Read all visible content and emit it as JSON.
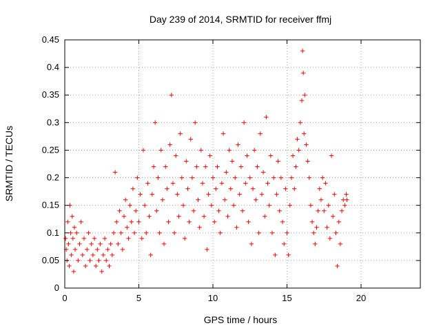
{
  "chart_data": {
    "type": "scatter",
    "title": "Day 239 of 2014, SRMTID for receiver ffmj",
    "xlabel": "GPS time / hours",
    "ylabel": "SRMTID / TECUs",
    "xlim": [
      0,
      24
    ],
    "ylim": [
      0,
      0.45
    ],
    "x_ticks": [
      0,
      5,
      10,
      15,
      20
    ],
    "y_ticks": [
      0,
      0.05,
      0.1,
      0.15,
      0.2,
      0.25,
      0.3,
      0.35,
      0.4,
      0.45
    ],
    "x_tick_labels": [
      "0",
      "5",
      "10",
      "15",
      "20"
    ],
    "y_tick_labels": [
      "0",
      "0.05",
      "0.1",
      "0.15",
      "0.2",
      "0.25",
      "0.3",
      "0.35",
      "0.4",
      "0.45"
    ],
    "grid": true,
    "marker": "+",
    "color": "#ff0000",
    "series": [
      {
        "points": [
          [
            0.05,
            0.09
          ],
          [
            0.1,
            0.07
          ],
          [
            0.15,
            0.05
          ],
          [
            0.2,
            0.12
          ],
          [
            0.25,
            0.08
          ],
          [
            0.3,
            0.04
          ],
          [
            0.35,
            0.15
          ],
          [
            0.4,
            0.1
          ],
          [
            0.45,
            0.06
          ],
          [
            0.5,
            0.13
          ],
          [
            0.55,
            0.09
          ],
          [
            0.6,
            0.03
          ],
          [
            0.65,
            0.11
          ],
          [
            0.7,
            0.07
          ],
          [
            0.8,
            0.1
          ],
          [
            0.9,
            0.05
          ],
          [
            1.0,
            0.08
          ],
          [
            1.1,
            0.12
          ],
          [
            1.2,
            0.06
          ],
          [
            1.3,
            0.09
          ],
          [
            1.4,
            0.04
          ],
          [
            1.5,
            0.07
          ],
          [
            1.6,
            0.1
          ],
          [
            1.7,
            0.05
          ],
          [
            1.8,
            0.08
          ],
          [
            1.9,
            0.06
          ],
          [
            2.0,
            0.09
          ],
          [
            2.1,
            0.04
          ],
          [
            2.2,
            0.07
          ],
          [
            2.3,
            0.05
          ],
          [
            2.4,
            0.08
          ],
          [
            2.5,
            0.03
          ],
          [
            2.6,
            0.06
          ],
          [
            2.7,
            0.09
          ],
          [
            2.8,
            0.05
          ],
          [
            2.9,
            0.07
          ],
          [
            3.0,
            0.04
          ],
          [
            3.1,
            0.08
          ],
          [
            3.2,
            0.06
          ],
          [
            3.3,
            0.1
          ],
          [
            3.4,
            0.21
          ],
          [
            3.5,
            0.12
          ],
          [
            3.6,
            0.08
          ],
          [
            3.7,
            0.14
          ],
          [
            3.8,
            0.1
          ],
          [
            3.9,
            0.07
          ],
          [
            4.0,
            0.13
          ],
          [
            4.1,
            0.16
          ],
          [
            4.2,
            0.11
          ],
          [
            4.3,
            0.09
          ],
          [
            4.4,
            0.15
          ],
          [
            4.5,
            0.12
          ],
          [
            4.6,
            0.18
          ],
          [
            4.7,
            0.1
          ],
          [
            4.8,
            0.14
          ],
          [
            4.9,
            0.2
          ],
          [
            5.0,
            0.12
          ],
          [
            5.1,
            0.17
          ],
          [
            5.2,
            0.09
          ],
          [
            5.3,
            0.25
          ],
          [
            5.4,
            0.15
          ],
          [
            5.5,
            0.1
          ],
          [
            5.6,
            0.19
          ],
          [
            5.7,
            0.13
          ],
          [
            5.8,
            0.06
          ],
          [
            5.9,
            0.17
          ],
          [
            6.0,
            0.22
          ],
          [
            6.1,
            0.3
          ],
          [
            6.2,
            0.14
          ],
          [
            6.3,
            0.2
          ],
          [
            6.4,
            0.1
          ],
          [
            6.5,
            0.25
          ],
          [
            6.6,
            0.16
          ],
          [
            6.7,
            0.08
          ],
          [
            6.8,
            0.22
          ],
          [
            6.9,
            0.18
          ],
          [
            7.0,
            0.12
          ],
          [
            7.1,
            0.26
          ],
          [
            7.2,
            0.35
          ],
          [
            7.3,
            0.19
          ],
          [
            7.4,
            0.1
          ],
          [
            7.5,
            0.24
          ],
          [
            7.6,
            0.17
          ],
          [
            7.7,
            0.13
          ],
          [
            7.8,
            0.28
          ],
          [
            7.9,
            0.2
          ],
          [
            8.0,
            0.15
          ],
          [
            8.1,
            0.09
          ],
          [
            8.2,
            0.23
          ],
          [
            8.3,
            0.18
          ],
          [
            8.4,
            0.12
          ],
          [
            8.5,
            0.27
          ],
          [
            8.6,
            0.2
          ],
          [
            8.7,
            0.14
          ],
          [
            8.8,
            0.3
          ],
          [
            8.9,
            0.22
          ],
          [
            9.0,
            0.16
          ],
          [
            9.1,
            0.11
          ],
          [
            9.2,
            0.25
          ],
          [
            9.3,
            0.19
          ],
          [
            9.4,
            0.13
          ],
          [
            9.5,
            0.22
          ],
          [
            9.6,
            0.07
          ],
          [
            9.7,
            0.17
          ],
          [
            9.8,
            0.24
          ],
          [
            9.9,
            0.15
          ],
          [
            10.0,
            0.2
          ],
          [
            10.1,
            0.12
          ],
          [
            10.2,
            0.18
          ],
          [
            10.3,
            0.22
          ],
          [
            10.4,
            0.14
          ],
          [
            10.5,
            0.1
          ],
          [
            10.6,
            0.19
          ],
          [
            10.7,
            0.28
          ],
          [
            10.8,
            0.16
          ],
          [
            10.9,
            0.21
          ],
          [
            11.0,
            0.13
          ],
          [
            11.1,
            0.25
          ],
          [
            11.2,
            0.18
          ],
          [
            11.3,
            0.23
          ],
          [
            11.4,
            0.15
          ],
          [
            11.5,
            0.2
          ],
          [
            11.6,
            0.11
          ],
          [
            11.7,
            0.26
          ],
          [
            11.8,
            0.17
          ],
          [
            11.9,
            0.22
          ],
          [
            12.0,
            0.14
          ],
          [
            12.1,
            0.3
          ],
          [
            12.2,
            0.19
          ],
          [
            12.3,
            0.24
          ],
          [
            12.4,
            0.12
          ],
          [
            12.5,
            0.2
          ],
          [
            12.6,
            0.08
          ],
          [
            12.7,
            0.18
          ],
          [
            12.8,
            0.25
          ],
          [
            12.9,
            0.16
          ],
          [
            13.0,
            0.22
          ],
          [
            13.1,
            0.1
          ],
          [
            13.2,
            0.28
          ],
          [
            13.3,
            0.17
          ],
          [
            13.4,
            0.21
          ],
          [
            13.5,
            0.13
          ],
          [
            13.6,
            0.31
          ],
          [
            13.7,
            0.19
          ],
          [
            13.8,
            0.15
          ],
          [
            13.9,
            0.24
          ],
          [
            14.0,
            0.1
          ],
          [
            14.1,
            0.2
          ],
          [
            14.2,
            0.06
          ],
          [
            14.3,
            0.17
          ],
          [
            14.4,
            0.23
          ],
          [
            14.5,
            0.14
          ],
          [
            14.6,
            0.2
          ],
          [
            14.7,
            0.12
          ],
          [
            14.8,
            0.08
          ],
          [
            14.9,
            0.18
          ],
          [
            15.0,
            0.1
          ],
          [
            15.1,
            0.06
          ],
          [
            15.2,
            0.15
          ],
          [
            15.3,
            0.2
          ],
          [
            15.4,
            0.24
          ],
          [
            15.5,
            0.18
          ],
          [
            15.6,
            0.22
          ],
          [
            15.7,
            0.27
          ],
          [
            15.8,
            0.25
          ],
          [
            15.9,
            0.3
          ],
          [
            16.0,
            0.34
          ],
          [
            16.05,
            0.43
          ],
          [
            16.1,
            0.39
          ],
          [
            16.15,
            0.28
          ],
          [
            16.2,
            0.35
          ],
          [
            16.3,
            0.26
          ],
          [
            16.4,
            0.23
          ],
          [
            16.5,
            0.2
          ],
          [
            16.6,
            0.15
          ],
          [
            16.7,
            0.12
          ],
          [
            16.8,
            0.1
          ],
          [
            16.9,
            0.08
          ],
          [
            17.0,
            0.11
          ],
          [
            17.1,
            0.14
          ],
          [
            17.2,
            0.18
          ],
          [
            17.3,
            0.16
          ],
          [
            17.4,
            0.2
          ],
          [
            17.5,
            0.14
          ],
          [
            17.6,
            0.19
          ],
          [
            17.7,
            0.11
          ],
          [
            17.8,
            0.15
          ],
          [
            17.9,
            0.09
          ],
          [
            18.0,
            0.24
          ],
          [
            18.1,
            0.13
          ],
          [
            18.2,
            0.17
          ],
          [
            18.3,
            0.1
          ],
          [
            18.4,
            0.04
          ],
          [
            18.5,
            0.12
          ],
          [
            18.6,
            0.08
          ],
          [
            18.7,
            0.14
          ],
          [
            18.8,
            0.16
          ],
          [
            18.9,
            0.15
          ],
          [
            19.0,
            0.17
          ],
          [
            19.05,
            0.16
          ]
        ]
      }
    ]
  }
}
